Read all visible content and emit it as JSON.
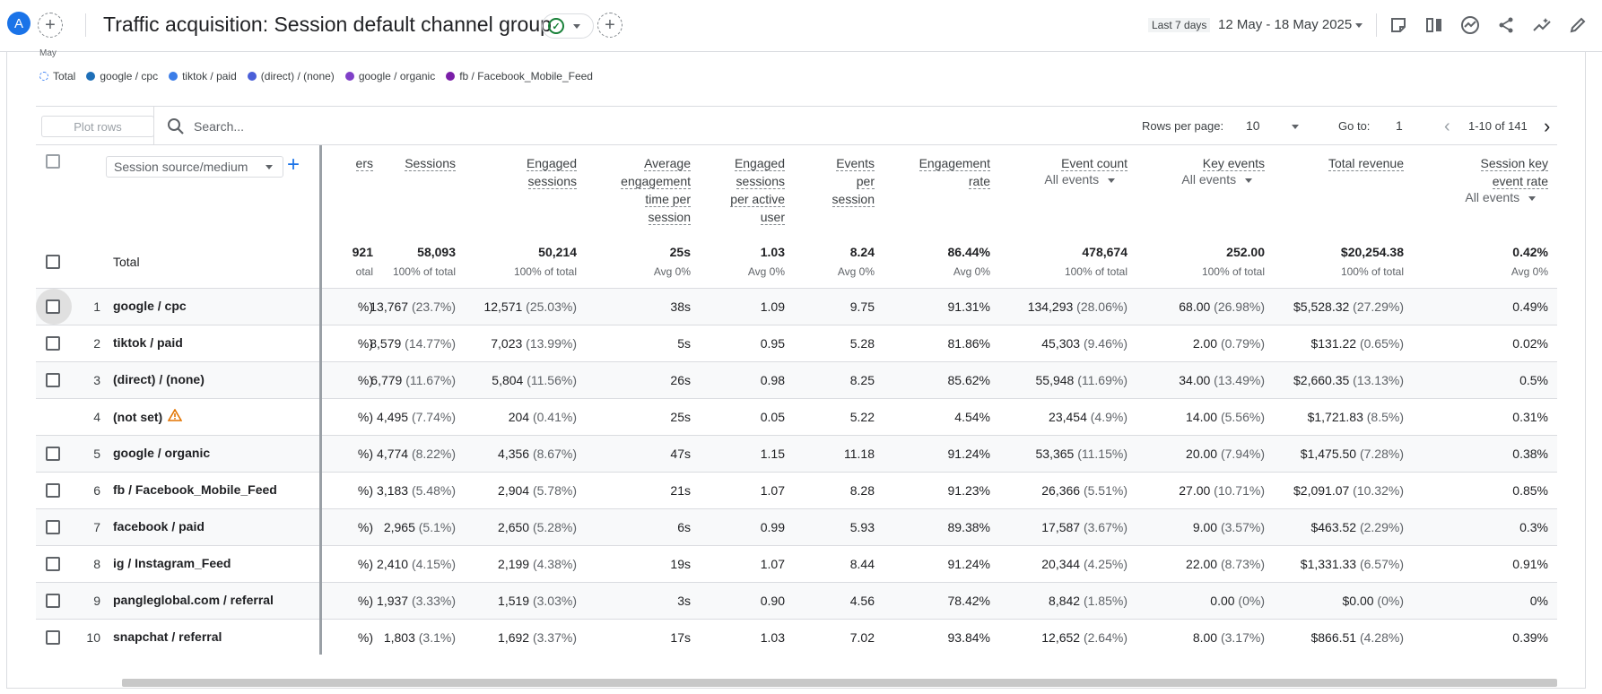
{
  "header": {
    "avatar_letter": "A",
    "title": "Traffic acquisition: Session default channel group",
    "date_badge": "Last 7 days",
    "date_range": "12 May - 18 May 2025"
  },
  "legend": {
    "cut_label": "May",
    "items": [
      {
        "label": "Total",
        "color": "#4285f4"
      },
      {
        "label": "google / cpc",
        "color": "#1e6fb8"
      },
      {
        "label": "tiktok / paid",
        "color": "#3b7de8"
      },
      {
        "label": "(direct) / (none)",
        "color": "#4a5fd8"
      },
      {
        "label": "google / organic",
        "color": "#8040c8"
      },
      {
        "label": "fb / Facebook_Mobile_Feed",
        "color": "#7a1ea8"
      }
    ]
  },
  "toolbar": {
    "plot_rows_label": "Plot rows",
    "search_placeholder": "Search...",
    "rows_per_page_label": "Rows per page:",
    "rows_per_page_value": "10",
    "goto_label": "Go to:",
    "goto_value": "1",
    "page_range": "1-10 of 141"
  },
  "table": {
    "dimension_label": "Session source/medium",
    "cut_header": "ers",
    "columns": [
      {
        "key": "sessions",
        "lines": [
          "Sessions"
        ]
      },
      {
        "key": "engaged",
        "lines": [
          "Engaged",
          "sessions"
        ]
      },
      {
        "key": "avg_time",
        "lines": [
          "Average",
          "engagement",
          "time per",
          "session"
        ]
      },
      {
        "key": "eng_per_user",
        "lines": [
          "Engaged",
          "sessions",
          "per active",
          "user"
        ]
      },
      {
        "key": "events_per",
        "lines": [
          "Events",
          "per",
          "session"
        ]
      },
      {
        "key": "eng_rate",
        "lines": [
          "Engagement",
          "rate"
        ]
      },
      {
        "key": "event_count",
        "lines": [
          "Event count"
        ],
        "sub": "All events"
      },
      {
        "key": "key_events",
        "lines": [
          "Key events"
        ],
        "sub": "All events"
      },
      {
        "key": "revenue",
        "lines": [
          "Total revenue"
        ]
      },
      {
        "key": "key_rate",
        "lines": [
          "Session key",
          "event rate"
        ],
        "sub": "All events"
      }
    ],
    "total": {
      "label": "Total",
      "cut_value": "921",
      "cut_sub": "otal",
      "values": [
        "58,093",
        "50,214",
        "25s",
        "1.03",
        "8.24",
        "86.44%",
        "478,674",
        "252.00",
        "$20,254.38",
        "0.42%"
      ],
      "subs": [
        "100% of total",
        "100% of total",
        "Avg 0%",
        "Avg 0%",
        "Avg 0%",
        "Avg 0%",
        "100% of total",
        "100% of total",
        "100% of total",
        "Avg 0%"
      ]
    },
    "rows": [
      {
        "num": "1",
        "dim": "google / cpc",
        "cut": "%)",
        "warn": false,
        "checkbox": true,
        "sessions": "13,767",
        "sessions_pct": "(23.7%)",
        "engaged": "12,571",
        "engaged_pct": "(25.03%)",
        "avg_time": "38s",
        "eng_per_user": "1.09",
        "events_per": "9.75",
        "eng_rate": "91.31%",
        "event_count": "134,293",
        "event_count_pct": "(28.06%)",
        "key_events": "68.00",
        "key_events_pct": "(26.98%)",
        "revenue": "$5,528.32",
        "revenue_pct": "(27.29%)",
        "key_rate": "0.49%"
      },
      {
        "num": "2",
        "dim": "tiktok / paid",
        "cut": "%)",
        "warn": false,
        "checkbox": true,
        "sessions": "8,579",
        "sessions_pct": "(14.77%)",
        "engaged": "7,023",
        "engaged_pct": "(13.99%)",
        "avg_time": "5s",
        "eng_per_user": "0.95",
        "events_per": "5.28",
        "eng_rate": "81.86%",
        "event_count": "45,303",
        "event_count_pct": "(9.46%)",
        "key_events": "2.00",
        "key_events_pct": "(0.79%)",
        "revenue": "$131.22",
        "revenue_pct": "(0.65%)",
        "key_rate": "0.02%"
      },
      {
        "num": "3",
        "dim": "(direct) / (none)",
        "cut": "%)",
        "warn": false,
        "checkbox": true,
        "sessions": "6,779",
        "sessions_pct": "(11.67%)",
        "engaged": "5,804",
        "engaged_pct": "(11.56%)",
        "avg_time": "26s",
        "eng_per_user": "0.98",
        "events_per": "8.25",
        "eng_rate": "85.62%",
        "event_count": "55,948",
        "event_count_pct": "(11.69%)",
        "key_events": "34.00",
        "key_events_pct": "(13.49%)",
        "revenue": "$2,660.35",
        "revenue_pct": "(13.13%)",
        "key_rate": "0.5%"
      },
      {
        "num": "4",
        "dim": "(not set)",
        "cut": "%)",
        "warn": true,
        "checkbox": false,
        "sessions": "4,495",
        "sessions_pct": "(7.74%)",
        "engaged": "204",
        "engaged_pct": "(0.41%)",
        "avg_time": "25s",
        "eng_per_user": "0.05",
        "events_per": "5.22",
        "eng_rate": "4.54%",
        "event_count": "23,454",
        "event_count_pct": "(4.9%)",
        "key_events": "14.00",
        "key_events_pct": "(5.56%)",
        "revenue": "$1,721.83",
        "revenue_pct": "(8.5%)",
        "key_rate": "0.31%"
      },
      {
        "num": "5",
        "dim": "google / organic",
        "cut": "%)",
        "warn": false,
        "checkbox": true,
        "sessions": "4,774",
        "sessions_pct": "(8.22%)",
        "engaged": "4,356",
        "engaged_pct": "(8.67%)",
        "avg_time": "47s",
        "eng_per_user": "1.15",
        "events_per": "11.18",
        "eng_rate": "91.24%",
        "event_count": "53,365",
        "event_count_pct": "(11.15%)",
        "key_events": "20.00",
        "key_events_pct": "(7.94%)",
        "revenue": "$1,475.50",
        "revenue_pct": "(7.28%)",
        "key_rate": "0.38%"
      },
      {
        "num": "6",
        "dim": "fb / Facebook_Mobile_Feed",
        "cut": "%)",
        "warn": false,
        "checkbox": true,
        "sessions": "3,183",
        "sessions_pct": "(5.48%)",
        "engaged": "2,904",
        "engaged_pct": "(5.78%)",
        "avg_time": "21s",
        "eng_per_user": "1.07",
        "events_per": "8.28",
        "eng_rate": "91.23%",
        "event_count": "26,366",
        "event_count_pct": "(5.51%)",
        "key_events": "27.00",
        "key_events_pct": "(10.71%)",
        "revenue": "$2,091.07",
        "revenue_pct": "(10.32%)",
        "key_rate": "0.85%"
      },
      {
        "num": "7",
        "dim": "facebook / paid",
        "cut": "%)",
        "warn": false,
        "checkbox": true,
        "sessions": "2,965",
        "sessions_pct": "(5.1%)",
        "engaged": "2,650",
        "engaged_pct": "(5.28%)",
        "avg_time": "6s",
        "eng_per_user": "0.99",
        "events_per": "5.93",
        "eng_rate": "89.38%",
        "event_count": "17,587",
        "event_count_pct": "(3.67%)",
        "key_events": "9.00",
        "key_events_pct": "(3.57%)",
        "revenue": "$463.52",
        "revenue_pct": "(2.29%)",
        "key_rate": "0.3%"
      },
      {
        "num": "8",
        "dim": "ig / Instagram_Feed",
        "cut": "%)",
        "warn": false,
        "checkbox": true,
        "sessions": "2,410",
        "sessions_pct": "(4.15%)",
        "engaged": "2,199",
        "engaged_pct": "(4.38%)",
        "avg_time": "19s",
        "eng_per_user": "1.07",
        "events_per": "8.44",
        "eng_rate": "91.24%",
        "event_count": "20,344",
        "event_count_pct": "(4.25%)",
        "key_events": "22.00",
        "key_events_pct": "(8.73%)",
        "revenue": "$1,331.33",
        "revenue_pct": "(6.57%)",
        "key_rate": "0.91%"
      },
      {
        "num": "9",
        "dim": "pangleglobal.com / referral",
        "cut": "%)",
        "warn": false,
        "checkbox": true,
        "sessions": "1,937",
        "sessions_pct": "(3.33%)",
        "engaged": "1,519",
        "engaged_pct": "(3.03%)",
        "avg_time": "3s",
        "eng_per_user": "0.90",
        "events_per": "4.56",
        "eng_rate": "78.42%",
        "event_count": "8,842",
        "event_count_pct": "(1.85%)",
        "key_events": "0.00",
        "key_events_pct": "(0%)",
        "revenue": "$0.00",
        "revenue_pct": "(0%)",
        "key_rate": "0%"
      },
      {
        "num": "10",
        "dim": "snapchat / referral",
        "cut": "%)",
        "warn": false,
        "checkbox": true,
        "sessions": "1,803",
        "sessions_pct": "(3.1%)",
        "engaged": "1,692",
        "engaged_pct": "(3.37%)",
        "avg_time": "17s",
        "eng_per_user": "1.03",
        "events_per": "7.02",
        "eng_rate": "93.84%",
        "event_count": "12,652",
        "event_count_pct": "(2.64%)",
        "key_events": "8.00",
        "key_events_pct": "(3.17%)",
        "revenue": "$866.51",
        "revenue_pct": "(4.28%)",
        "key_rate": "0.39%"
      }
    ]
  }
}
